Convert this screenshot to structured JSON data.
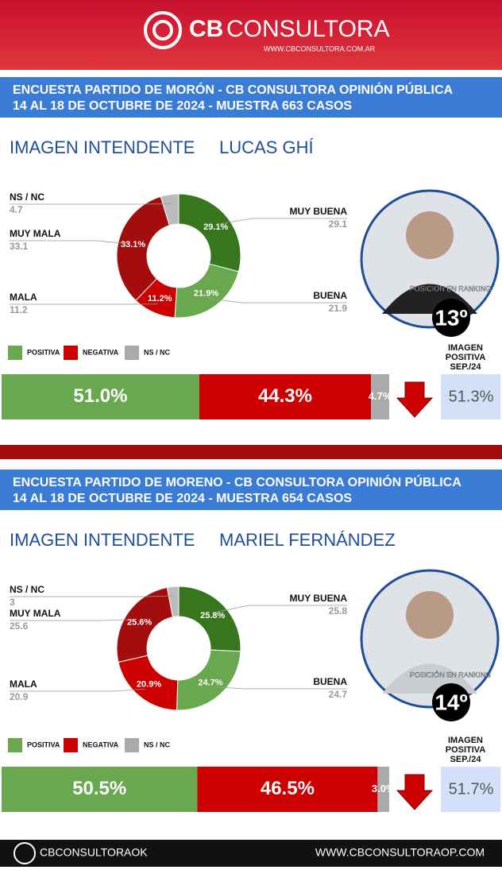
{
  "header": {
    "brand_a": "CB",
    "brand_b": "CONSULTORA",
    "url": "WWW.CBCONSULTORA.COM.AR"
  },
  "panels": [
    {
      "survey_line1": "ENCUESTA PARTIDO DE MORÓN - CB CONSULTORA OPINIÓN PÚBLICA",
      "survey_line2": "14 AL 18 DE OCTUBRE DE 2024 - MUESTRA 663 CASOS",
      "heading": "IMAGEN INTENDENTE",
      "name": "LUCAS GHÍ",
      "ranking_label": "POSICIÓN EN RANKING",
      "ranking": "13º",
      "previous_label": [
        "IMAGEN",
        "POSITIVA",
        "SEP./24"
      ],
      "previous_value": "51.3%"
    },
    {
      "survey_line1": "ENCUESTA PARTIDO DE MORENO - CB CONSULTORA OPINIÓN PÚBLICA",
      "survey_line2": "14 AL 18 DE OCTUBRE DE 2024 - MUESTRA 654 CASOS",
      "heading": "IMAGEN INTENDENTE",
      "name": "MARIEL FERNÁNDEZ",
      "ranking_label": "POSICIÓN EN RANKING",
      "ranking": "14º",
      "previous_label": [
        "IMAGEN",
        "POSITIVA",
        "SEP./24"
      ],
      "previous_value": "51.7%"
    }
  ],
  "chart_data": [
    {
      "type": "pie",
      "categories": [
        "MUY BUENA",
        "BUENA",
        "MALA",
        "MUY MALA",
        "NS / NC"
      ],
      "values": [
        29.1,
        21.9,
        11.2,
        33.1,
        4.7
      ],
      "value_labels": [
        "29.1%",
        "21.9%",
        "11.2%",
        "33.1%",
        "4.7%"
      ],
      "colors": [
        "#38761d",
        "#6aa84f",
        "#cc0000",
        "#a30d0d",
        "#bcbcbc"
      ]
    },
    {
      "type": "stacked-bar",
      "xlim": [
        0,
        100
      ],
      "series": [
        {
          "name": "POSITIVA",
          "color": "#6aa84f",
          "values": [
            51.0
          ],
          "value_labels": [
            "51.0%"
          ]
        },
        {
          "name": "NEGATIVA",
          "color": "#cc0000",
          "values": [
            44.3
          ],
          "value_labels": [
            "44.3%"
          ]
        },
        {
          "name": "NS / NC",
          "color": "#aaaaaa",
          "values": [
            4.7
          ],
          "value_labels": [
            "4.7%"
          ]
        }
      ]
    },
    {
      "type": "pie",
      "categories": [
        "MUY BUENA",
        "BUENA",
        "MALA",
        "MUY MALA",
        "NS / NC"
      ],
      "values": [
        25.8,
        24.7,
        20.9,
        25.6,
        3.0
      ],
      "value_labels": [
        "25.8%",
        "24.7%",
        "20.9%",
        "25.6%",
        "3.0%"
      ],
      "colors": [
        "#38761d",
        "#6aa84f",
        "#cc0000",
        "#a30d0d",
        "#bcbcbc"
      ]
    },
    {
      "type": "stacked-bar",
      "xlim": [
        0,
        100
      ],
      "series": [
        {
          "name": "POSITIVA",
          "color": "#6aa84f",
          "values": [
            50.5
          ],
          "value_labels": [
            "50.5%"
          ]
        },
        {
          "name": "NEGATIVA",
          "color": "#cc0000",
          "values": [
            46.5
          ],
          "value_labels": [
            "46.5%"
          ]
        },
        {
          "name": "NS / NC",
          "color": "#aaaaaa",
          "values": [
            3.0
          ],
          "value_labels": [
            "3.0%"
          ]
        }
      ]
    }
  ],
  "footer": {
    "handle": "CBCONSULTORAOK",
    "site": "WWW.CBCONSULTORAOP.COM"
  }
}
